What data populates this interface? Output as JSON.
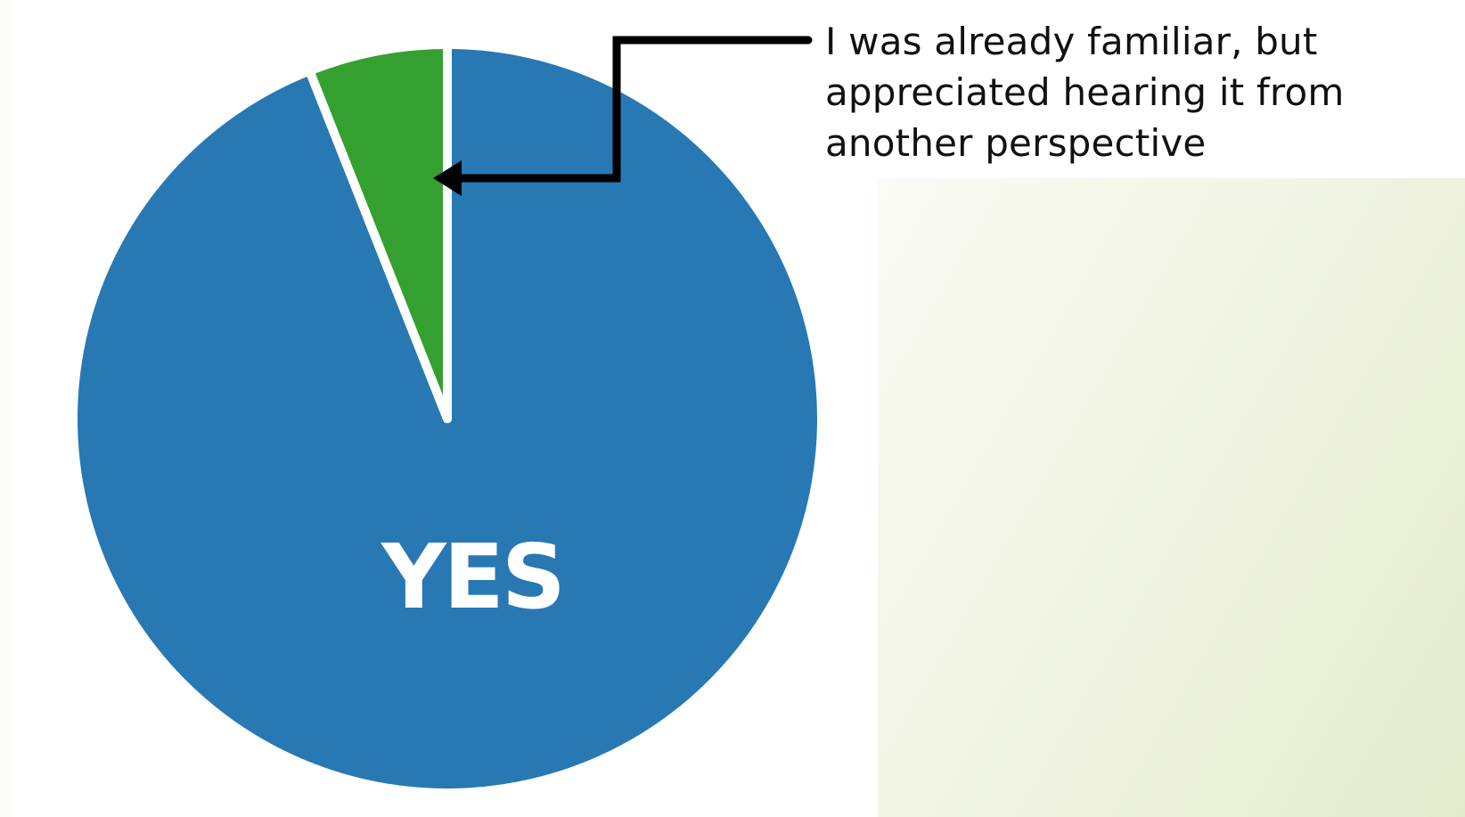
{
  "chart_data": {
    "type": "pie",
    "slices": [
      {
        "label": "YES",
        "value": 94,
        "color": "#2878b4"
      },
      {
        "label": "I was already familiar, but appreciated  hearing it from another perspective",
        "value": 6,
        "color": "#34a030"
      }
    ],
    "annotation": "I was already familiar, but\nappreciated  hearing it from\nanother perspective",
    "slice_label": "YES"
  },
  "colors": {
    "yes": "#2878b4",
    "familiar": "#34a030",
    "separator": "#ffffff",
    "arrow": "#000000"
  }
}
